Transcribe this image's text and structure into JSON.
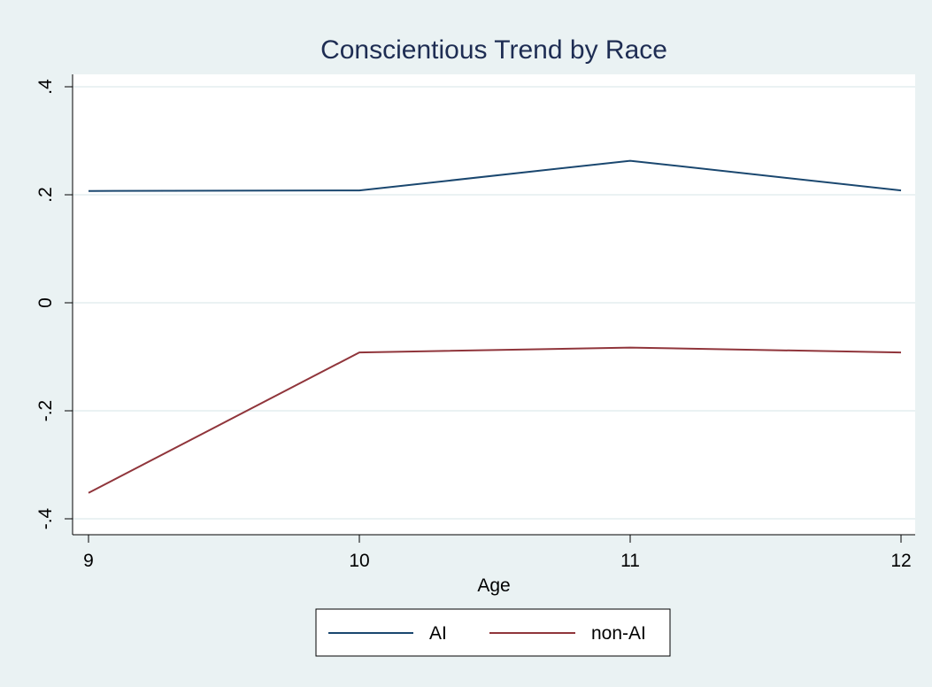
{
  "chart_data": {
    "type": "line",
    "title": "Conscientious Trend by Race",
    "xlabel": "Age",
    "ylabel": "",
    "x": [
      9,
      10,
      11,
      12
    ],
    "xticks": [
      "9",
      "10",
      "11",
      "12"
    ],
    "xlim": [
      9,
      12
    ],
    "yticks": [
      -0.4,
      -0.2,
      0,
      0.2,
      0.4
    ],
    "ytick_labels": [
      "-.4",
      "-.2",
      "0",
      ".2",
      ".4"
    ],
    "ylim": [
      -0.4,
      0.4
    ],
    "grid": "horizontal",
    "legend_position": "bottom",
    "series": [
      {
        "name": "AI",
        "color": "#1a476f",
        "values": [
          0.207,
          0.208,
          0.263,
          0.208
        ]
      },
      {
        "name": "non-AI",
        "color": "#90353b",
        "values": [
          -0.352,
          -0.092,
          -0.083,
          -0.092
        ]
      }
    ]
  }
}
